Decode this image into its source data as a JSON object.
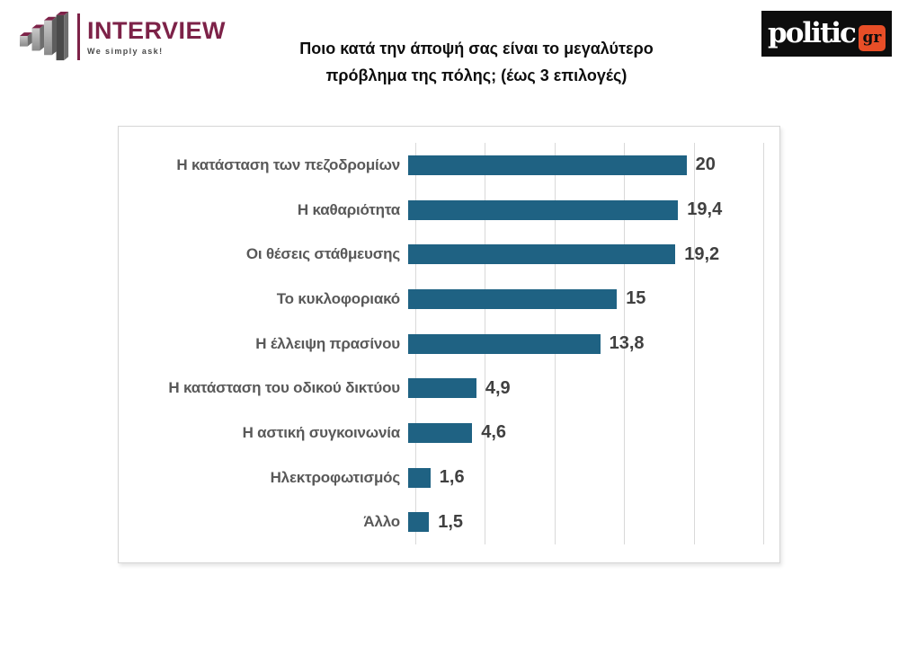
{
  "header": {
    "interview_logo": {
      "name": "INTERVIEW",
      "tagline": "We simply ask!"
    },
    "title_line1": "Ποιο κατά την άποψή σας είναι το μεγαλύτερο",
    "title_line2": "πρόβλημα της πόλης; (έως 3 επιλογές)",
    "politic_logo": {
      "name": "politic",
      "suffix": "gr",
      "badge_color": "#e84e27",
      "background": "#0d0d0d"
    }
  },
  "chart_data": {
    "type": "bar",
    "orientation": "horizontal",
    "title": "Ποιο κατά την άποψή σας είναι το μεγαλύτερο πρόβλημα της πόλης; (έως 3 επιλογές)",
    "categories": [
      "Η κατάσταση των πεζοδρομίων",
      "Η καθαριότητα",
      "Οι θέσεις στάθμευσης",
      "Το κυκλοφοριακό",
      "Η έλλειψη πρασίνου",
      "Η κατάσταση του οδικού δικτύου",
      "Η αστική συγκοινωνία",
      "Ηλεκτροφωτισμός",
      "Άλλο"
    ],
    "values": [
      20,
      19.4,
      19.2,
      15,
      13.8,
      4.9,
      4.6,
      1.6,
      1.5
    ],
    "value_labels": [
      "20",
      "19,4",
      "19,2",
      "15",
      "13,8",
      "4,9",
      "4,6",
      "1,6",
      "1,5"
    ],
    "xlim": [
      0,
      25
    ],
    "gridline_step": 5,
    "grid": true,
    "legend": false,
    "bar_color": "#1f6283",
    "category_label_color": "#595959",
    "value_label_color": "#404040",
    "gridline_color": "#d9d9d9"
  }
}
